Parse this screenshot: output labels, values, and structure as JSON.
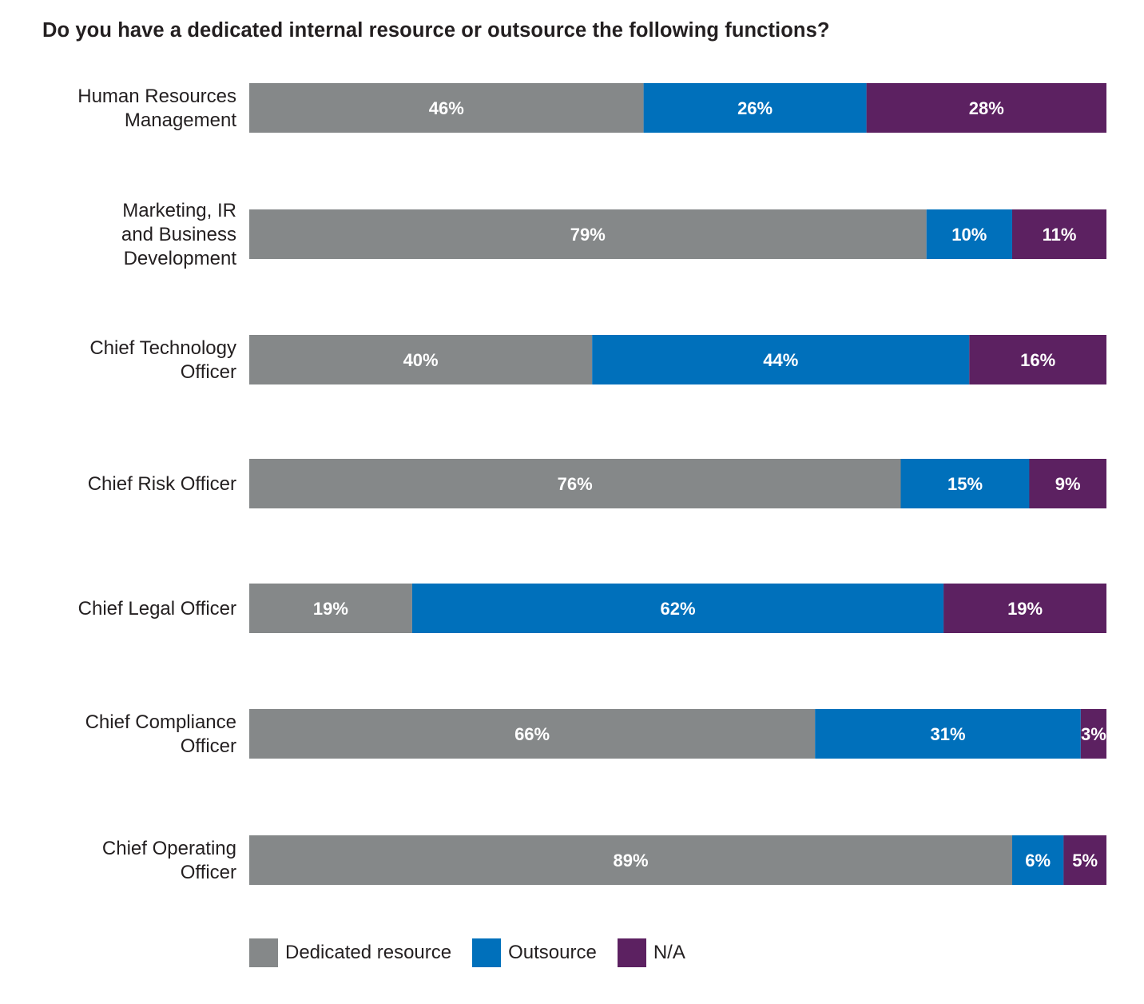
{
  "chart_data": {
    "type": "bar",
    "orientation": "horizontal",
    "stacked": true,
    "title": "Do you have a dedicated internal resource or outsource the following functions?",
    "xlabel": "",
    "ylabel": "",
    "xlim": [
      0,
      100
    ],
    "grid": false,
    "legend_position": "bottom-left",
    "categories": [
      [
        "Human Resources",
        "Management"
      ],
      [
        "Marketing, IR",
        "and Business",
        "Development"
      ],
      [
        "Chief Technology",
        "Officer"
      ],
      [
        "Chief Risk Officer"
      ],
      [
        "Chief Legal Officer"
      ],
      [
        "Chief Compliance",
        "Officer"
      ],
      [
        "Chief Operating",
        "Officer"
      ]
    ],
    "series": [
      {
        "name": "Dedicated resource",
        "color": "#858889",
        "values": [
          46,
          79,
          40,
          76,
          19,
          66,
          89
        ]
      },
      {
        "name": "Outsource",
        "color": "#0070bb",
        "values": [
          26,
          10,
          44,
          15,
          62,
          31,
          6
        ]
      },
      {
        "name": "N/A",
        "color": "#5c2161",
        "values": [
          28,
          11,
          16,
          9,
          19,
          3,
          5
        ]
      }
    ],
    "value_suffix": "%"
  }
}
